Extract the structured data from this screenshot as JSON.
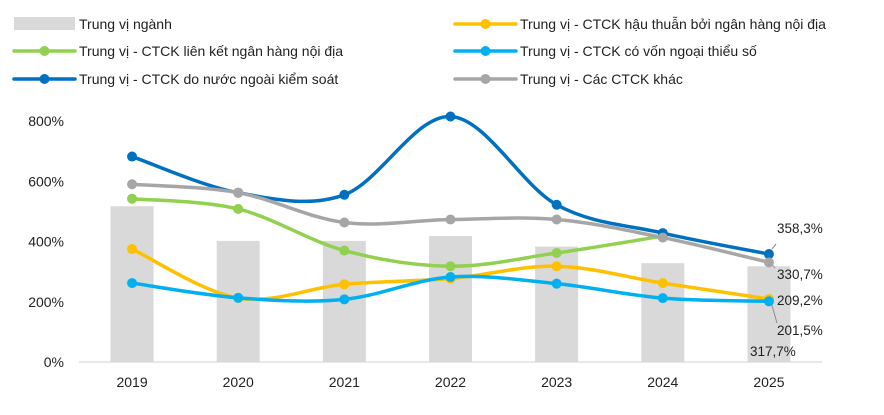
{
  "chart_data": {
    "type": "bar",
    "categories": [
      "2019",
      "2020",
      "2021",
      "2022",
      "2023",
      "2024",
      "2025"
    ],
    "ylim": [
      0,
      800
    ],
    "yticks": [
      "0%",
      "200%",
      "400%",
      "600%",
      "800%"
    ],
    "ytick_values": [
      0,
      200,
      400,
      600,
      800
    ],
    "grid": false,
    "legend_position": "top",
    "bar_series": {
      "name": "Trung vị ngành",
      "color": "#d9d9d9",
      "values": [
        517,
        402,
        402,
        418,
        383,
        328,
        317.7
      ]
    },
    "line_series": [
      {
        "name": "Trung vị - CTCK hậu thuẫn bởi ngân hàng nội địa",
        "color": "#ffc000",
        "values": [
          375,
          212,
          258,
          277,
          318,
          262,
          209.2
        ]
      },
      {
        "name": "Trung vị - CTCK liên kết ngân hàng nội địa",
        "color": "#92d050",
        "values": [
          542,
          508,
          370,
          318,
          362,
          418,
          null
        ]
      },
      {
        "name": "Trung vị - CTCK có vốn ngoại thiểu số",
        "color": "#00b0f0",
        "values": [
          262,
          213,
          208,
          282,
          260,
          212,
          201.5
        ]
      },
      {
        "name": "Trung vị - CTCK do nước ngoài kiểm soát",
        "color": "#0070c0",
        "values": [
          682,
          562,
          555,
          815,
          522,
          428,
          358.3
        ]
      },
      {
        "name": "Trung vị - Các CTCK khác",
        "color": "#a6a6a6",
        "values": [
          590,
          562,
          463,
          473,
          473,
          413,
          330.7
        ]
      }
    ],
    "data_labels": [
      "358,3%",
      "330,7%",
      "209,2%",
      "201,5%",
      "317,7%"
    ]
  }
}
